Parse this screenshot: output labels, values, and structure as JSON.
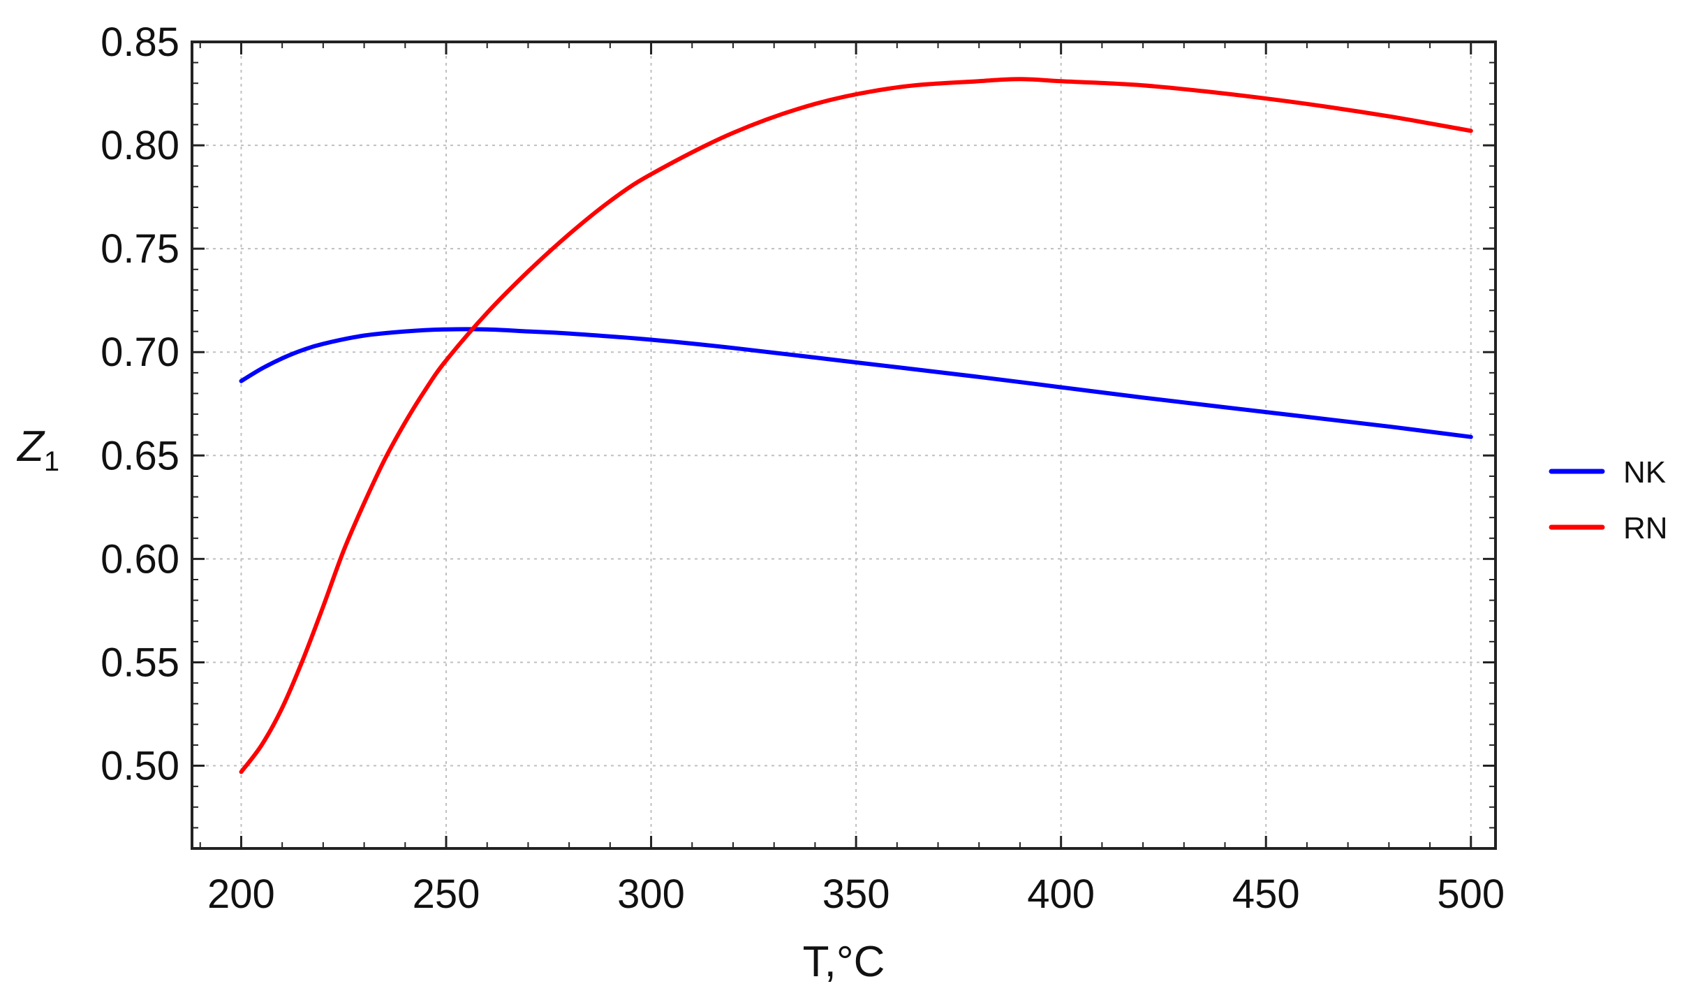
{
  "chart_data": {
    "type": "line",
    "title": "",
    "xlabel": "T,°C",
    "ylabel": "Z",
    "ylabel_subscript": "1",
    "xlim": [
      188,
      506
    ],
    "ylim": [
      0.46,
      0.85
    ],
    "x_ticks": [
      200,
      250,
      300,
      350,
      400,
      450,
      500
    ],
    "x_tick_labels": [
      "200",
      "250",
      "300",
      "350",
      "400",
      "450",
      "500"
    ],
    "y_ticks": [
      0.5,
      0.55,
      0.6,
      0.65,
      0.7,
      0.75,
      0.8,
      0.85
    ],
    "y_tick_labels": [
      "0.50",
      "0.55",
      "0.60",
      "0.65",
      "0.70",
      "0.75",
      "0.80",
      "0.85"
    ],
    "grid": true,
    "legend_position": "right",
    "series": [
      {
        "name": "NK",
        "color": "#0000ff",
        "x": [
          200,
          205,
          210,
          215,
          220,
          230,
          240,
          250,
          260,
          270,
          280,
          300,
          320,
          350,
          380,
          400,
          420,
          450,
          480,
          500
        ],
        "y": [
          0.686,
          0.692,
          0.697,
          0.701,
          0.704,
          0.708,
          0.71,
          0.711,
          0.711,
          0.71,
          0.709,
          0.706,
          0.702,
          0.695,
          0.688,
          0.683,
          0.678,
          0.671,
          0.664,
          0.659
        ]
      },
      {
        "name": "RN",
        "color": "#ff0000",
        "x": [
          200,
          205,
          210,
          215,
          220,
          225,
          230,
          235,
          240,
          245,
          250,
          260,
          270,
          280,
          290,
          300,
          320,
          340,
          360,
          380,
          390,
          400,
          420,
          440,
          460,
          480,
          500
        ],
        "y": [
          0.497,
          0.51,
          0.528,
          0.551,
          0.577,
          0.604,
          0.627,
          0.648,
          0.666,
          0.682,
          0.696,
          0.719,
          0.739,
          0.757,
          0.773,
          0.786,
          0.806,
          0.82,
          0.828,
          0.831,
          0.832,
          0.831,
          0.829,
          0.825,
          0.82,
          0.814,
          0.807
        ]
      }
    ]
  }
}
